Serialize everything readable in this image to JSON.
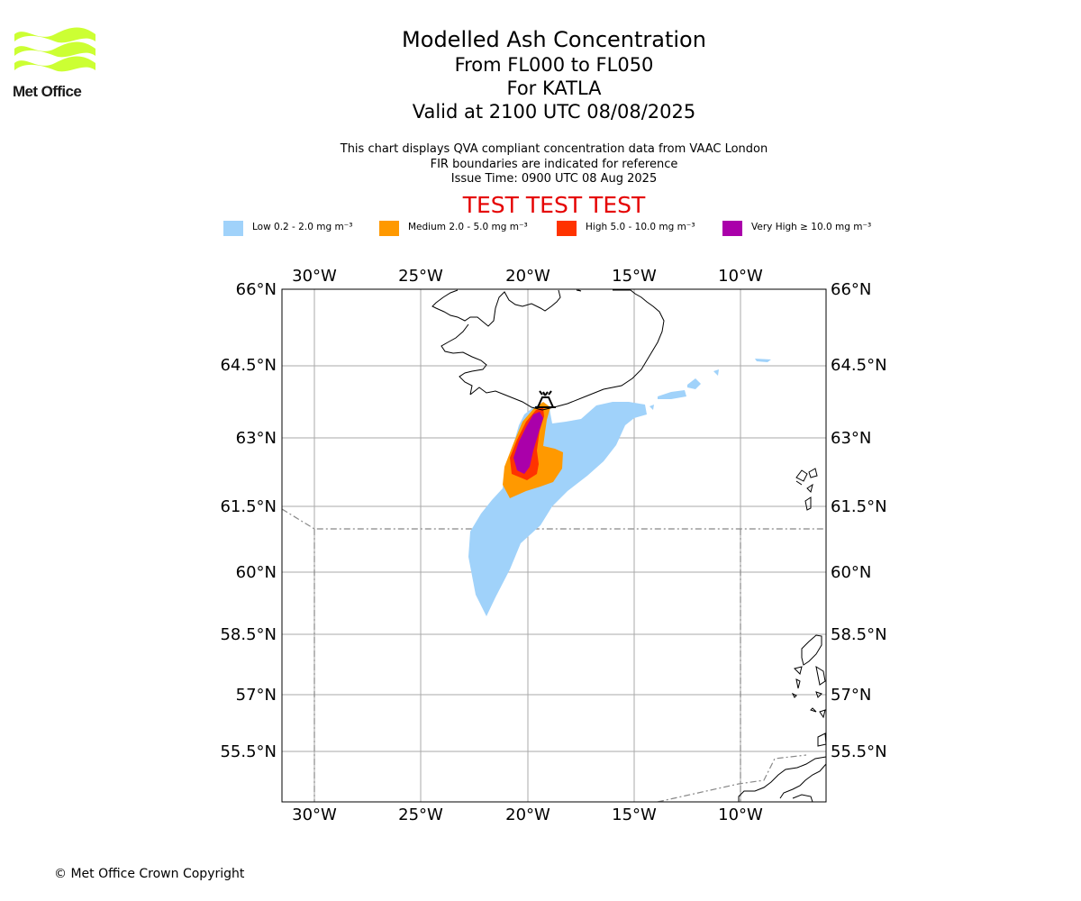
{
  "logo": {
    "text": "Met Office",
    "color": "#ccff33"
  },
  "titles": {
    "line1": "Modelled Ash Concentration",
    "line2": "From FL000 to FL050",
    "line3": "For KATLA",
    "line4": "Valid at 2100 UTC 08/08/2025"
  },
  "description": {
    "line1": "This chart displays QVA compliant concentration data from VAAC London",
    "line2": "FIR boundaries are indicated for reference",
    "line3": "Issue Time: 0900 UTC 08 Aug 2025"
  },
  "test_banner": "TEST TEST TEST",
  "legend": [
    {
      "label": "Low 0.2 - 2.0 mg m⁻³",
      "color": "#a0d2fa"
    },
    {
      "label": "Medium 2.0 - 5.0 mg m⁻³",
      "color": "#ff9900"
    },
    {
      "label": "High 5.0 - 10.0 mg m⁻³",
      "color": "#ff3300"
    },
    {
      "label": "Very High  ≥  10.0 mg m⁻³",
      "color": "#aa00aa"
    }
  ],
  "map": {
    "lon_ticks": [
      "30°W",
      "25°W",
      "20°W",
      "15°W",
      "10°W"
    ],
    "lat_ticks": [
      "66°N",
      "64.5°N",
      "63°N",
      "61.5°N",
      "60°N",
      "58.5°N",
      "57°N",
      "55.5°N"
    ],
    "volcano_icon": "volcano-icon",
    "colors": {
      "coast": "#000000",
      "grid": "#aaaaaa",
      "fir": "#888888"
    }
  },
  "copyright": "© Met Office Crown Copyright"
}
